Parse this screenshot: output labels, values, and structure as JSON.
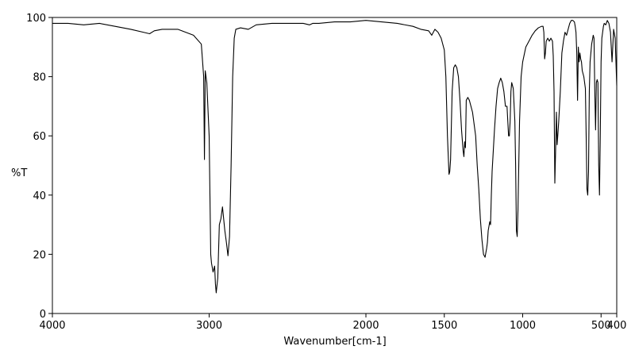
{
  "chart_data": {
    "type": "line",
    "title": "",
    "xlabel": "Wavenumber[cm-1]",
    "ylabel": "%T",
    "xlim": [
      4000,
      400
    ],
    "ylim": [
      0,
      100
    ],
    "x_ticks": [
      4000,
      3000,
      2000,
      1500,
      1000,
      500,
      400
    ],
    "x_tick_labels": [
      "4000",
      "3000",
      "2000",
      "1500",
      "1000",
      "500",
      "400"
    ],
    "y_ticks": [
      0,
      20,
      40,
      60,
      80,
      100
    ],
    "y_tick_labels": [
      "0",
      "20",
      "40",
      "60",
      "80",
      "100"
    ],
    "grid": false,
    "line_color": "#000000",
    "series": [
      {
        "x": [
          4000,
          3900,
          3800,
          3700,
          3600,
          3500,
          3420,
          3380,
          3350,
          3300,
          3200,
          3150,
          3100,
          3050,
          3035,
          3030,
          3025,
          3015,
          3000,
          2990,
          2985,
          2975,
          2965,
          2960,
          2955,
          2945,
          2935,
          2925,
          2915,
          2900,
          2890,
          2880,
          2870,
          2860,
          2850,
          2840,
          2830,
          2800,
          2750,
          2700,
          2600,
          2500,
          2400,
          2360,
          2340,
          2300,
          2200,
          2100,
          2000,
          1900,
          1800,
          1700,
          1650,
          1600,
          1580,
          1560,
          1540,
          1520,
          1500,
          1490,
          1480,
          1470,
          1465,
          1460,
          1450,
          1440,
          1430,
          1420,
          1410,
          1400,
          1390,
          1380,
          1375,
          1370,
          1365,
          1360,
          1350,
          1340,
          1320,
          1300,
          1290,
          1280,
          1270,
          1260,
          1250,
          1240,
          1230,
          1225,
          1220,
          1210,
          1205,
          1200,
          1195,
          1180,
          1170,
          1160,
          1150,
          1140,
          1130,
          1120,
          1110,
          1100,
          1095,
          1090,
          1085,
          1080,
          1075,
          1070,
          1060,
          1050,
          1045,
          1040,
          1035,
          1030,
          1025,
          1020,
          1010,
          1000,
          980,
          960,
          940,
          920,
          900,
          880,
          870,
          865,
          860,
          855,
          850,
          840,
          830,
          820,
          810,
          805,
          800,
          795,
          790,
          785,
          780,
          770,
          760,
          750,
          740,
          730,
          720,
          710,
          700,
          690,
          680,
          670,
          665,
          660,
          655,
          650,
          645,
          640,
          635,
          630,
          625,
          620,
          610,
          600,
          595,
          590,
          585,
          580,
          575,
          570,
          560,
          550,
          545,
          540,
          535,
          530,
          525,
          520,
          515,
          510,
          505,
          500,
          495,
          490,
          485,
          480,
          470,
          460,
          450,
          440,
          430,
          420,
          410,
          400
        ],
        "y": [
          98,
          98,
          97.5,
          98,
          97,
          96,
          95,
          94.5,
          95.5,
          96,
          96,
          95,
          94,
          91,
          80,
          52,
          82,
          78,
          60,
          20,
          17,
          14,
          16,
          10,
          7,
          12,
          30,
          32,
          36,
          28,
          24,
          19.5,
          26,
          50,
          80,
          93,
          96,
          96.5,
          96,
          97.5,
          98,
          98,
          98,
          97.5,
          98,
          98,
          98.5,
          98.5,
          99,
          98.5,
          98,
          97,
          96,
          95.5,
          94,
          96,
          95,
          93,
          89,
          80,
          60,
          47,
          48,
          52,
          75,
          83,
          84,
          83,
          80,
          72,
          62,
          55,
          53,
          58,
          56,
          72,
          73,
          72,
          68,
          60,
          50,
          42,
          32,
          25,
          20,
          19,
          22,
          24,
          28,
          31,
          30,
          40,
          48,
          62,
          70,
          76,
          78,
          79.5,
          78,
          75,
          70,
          70,
          65,
          60,
          60,
          65,
          75,
          78,
          76,
          65,
          50,
          28,
          26,
          35,
          50,
          65,
          80,
          85,
          90,
          92,
          94,
          95.5,
          96.5,
          97,
          97,
          95,
          86,
          88,
          92,
          93,
          92,
          93,
          92,
          87,
          75,
          44,
          55,
          68,
          57,
          65,
          75,
          88,
          92,
          95,
          94,
          96,
          98,
          99,
          99,
          98.5,
          97,
          95,
          88,
          72,
          90,
          85,
          88,
          86,
          85,
          82,
          80,
          76,
          60,
          42,
          40,
          48,
          75,
          85,
          91,
          94,
          93,
          75,
          62,
          78,
          79,
          78,
          50,
          40,
          60,
          85,
          93,
          95,
          97,
          98,
          97.5,
          99,
          98,
          95,
          85,
          96,
          93,
          77
        ]
      }
    ]
  }
}
